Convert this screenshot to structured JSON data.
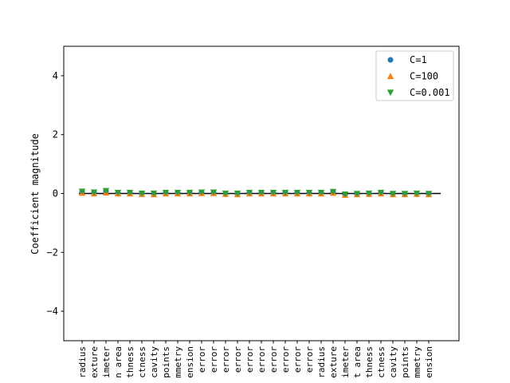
{
  "chart_data": {
    "type": "scatter",
    "ylabel": "Coefficient magnitude",
    "ylim": [
      -5,
      5
    ],
    "yticks": [
      4,
      2,
      0,
      -2,
      -4
    ],
    "ytick_labels": [
      "4",
      "2",
      "0",
      "−2",
      "−4"
    ],
    "grid": false,
    "legend_position": "upper right",
    "zero_line": true,
    "categories": [
      "radius",
      "exture",
      "imeter",
      "n area",
      "thness",
      "ctness",
      "cavity",
      "points",
      "mmetry",
      "ension",
      "error",
      "error",
      "error",
      "error",
      "error",
      "error",
      "error",
      "error",
      "error",
      "error",
      "radius",
      "exture",
      "imeter",
      "t area",
      "thness",
      "ctness",
      "cavity",
      "points",
      "mmetry",
      "ension"
    ],
    "series": [
      {
        "name": "C=1",
        "color": "#1f77b4",
        "marker": "circle",
        "values": [
          0.06,
          0.03,
          0.08,
          0.02,
          0.02,
          -0.01,
          -0.02,
          0.02,
          0.02,
          0.02,
          0.03,
          0.03,
          -0.01,
          -0.02,
          0.02,
          0.02,
          0.02,
          0.02,
          0.02,
          0.02,
          0.02,
          0.05,
          -0.04,
          -0.02,
          -0.01,
          0.02,
          -0.02,
          -0.02,
          -0.01,
          -0.02
        ]
      },
      {
        "name": "C=100",
        "color": "#ff7f0e",
        "marker": "triangle-up",
        "values": [
          0.02,
          0.0,
          0.03,
          0.0,
          0.0,
          -0.02,
          -0.03,
          0.0,
          0.0,
          0.0,
          0.01,
          0.01,
          -0.02,
          -0.03,
          0.0,
          0.0,
          0.0,
          0.0,
          0.0,
          0.0,
          0.0,
          0.02,
          -0.05,
          -0.03,
          -0.02,
          0.0,
          -0.03,
          -0.03,
          -0.02,
          -0.03
        ]
      },
      {
        "name": "C=0.001",
        "color": "#2ca02c",
        "marker": "triangle-down",
        "values": [
          0.07,
          0.04,
          0.09,
          0.03,
          0.03,
          0.0,
          0.0,
          0.03,
          0.03,
          0.03,
          0.04,
          0.04,
          0.0,
          0.0,
          0.03,
          0.03,
          0.03,
          0.03,
          0.03,
          0.03,
          0.03,
          0.06,
          -0.03,
          -0.01,
          0.0,
          0.03,
          -0.01,
          -0.01,
          0.0,
          -0.01
        ]
      }
    ]
  }
}
